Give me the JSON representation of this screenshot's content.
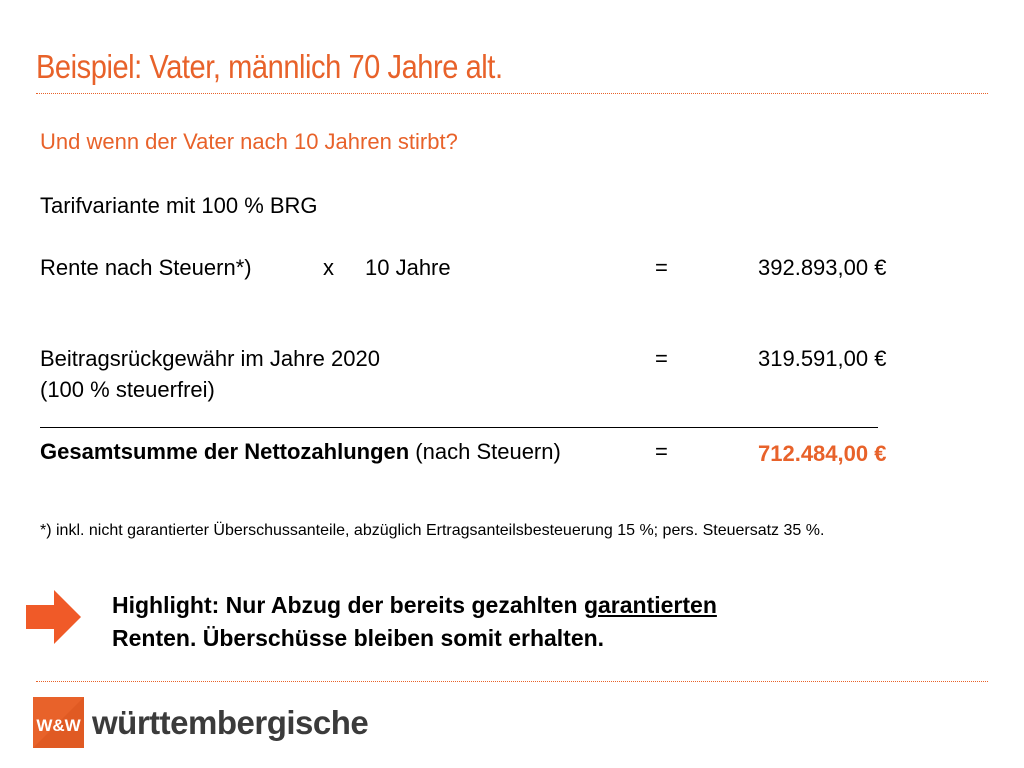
{
  "slide": {
    "title": "Beispiel: Vater, männlich 70 Jahre alt.",
    "subtitle": "Und wenn der Vater nach 10 Jahren stirbt?",
    "tarif": "Tarifvariante mit 100 % BRG"
  },
  "rows": {
    "rente": {
      "label": "Rente nach Steuern*)",
      "multiplier": "x",
      "years": "10 Jahre",
      "equals": "=",
      "amount": "392.893,00 €"
    },
    "brg": {
      "label": "Beitragsrückgewähr  im Jahre 2020",
      "sublabel": "(100 % steuerfrei)",
      "equals": "=",
      "amount": "319.591,00 €"
    },
    "total": {
      "label_bold": "Gesamtsumme der Nettozahlungen",
      "label_rest": " (nach Steuern)",
      "equals": "=",
      "amount": "712.484,00 €"
    }
  },
  "footnote": "*) inkl. nicht garantierter Überschussanteile, abzüglich Ertragsanteilsbesteuerung 15 %; pers. Steuersatz 35 %.",
  "highlight": {
    "line1_pre": "Highlight: Nur Abzug der bereits gezahlten ",
    "line1_underlined": "garantierten",
    "line2": "Renten. Überschüsse bleiben somit erhalten."
  },
  "brand": {
    "logo_text": "W&W",
    "name": "württembergische"
  },
  "colors": {
    "accent": "#e8622a",
    "text": "#000000",
    "brand_text": "#3b3b3b"
  },
  "icons": {
    "arrow": "arrow-right-icon",
    "logo": "ww-logo-icon"
  }
}
